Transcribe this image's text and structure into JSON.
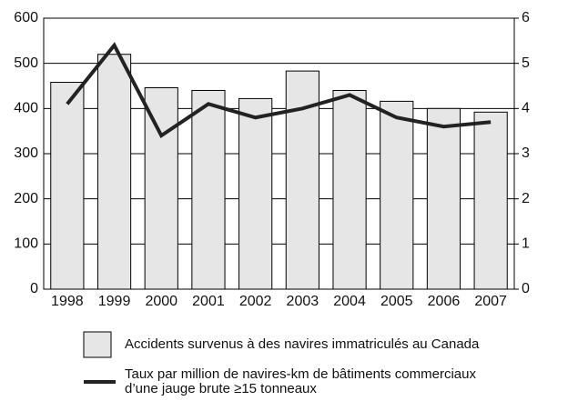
{
  "chart_data": {
    "type": "bar",
    "categories": [
      "1998",
      "1999",
      "2000",
      "2001",
      "2002",
      "2003",
      "2004",
      "2005",
      "2006",
      "2007"
    ],
    "series": [
      {
        "name": "Accidents survenus à des navires immatriculés au Canada",
        "type": "bar",
        "color": "#e6e6e6",
        "values": [
          458,
          520,
          446,
          440,
          422,
          483,
          440,
          416,
          400,
          392
        ]
      },
      {
        "name": "Taux par million de navires-km de bâtiments commerciaux\nd’une jauge brute ≥15 tonneaux",
        "type": "line",
        "axis": "y2",
        "color": "#222222",
        "values": [
          4.1,
          5.4,
          3.4,
          4.1,
          3.8,
          4.0,
          4.3,
          3.8,
          3.6,
          3.7
        ]
      }
    ],
    "ylim": [
      0,
      600
    ],
    "yticks": [
      0,
      100,
      200,
      300,
      400,
      500,
      600
    ],
    "y2lim": [
      0,
      6
    ],
    "y2ticks": [
      0,
      1,
      2,
      3,
      4,
      5,
      6
    ],
    "grid": true
  }
}
